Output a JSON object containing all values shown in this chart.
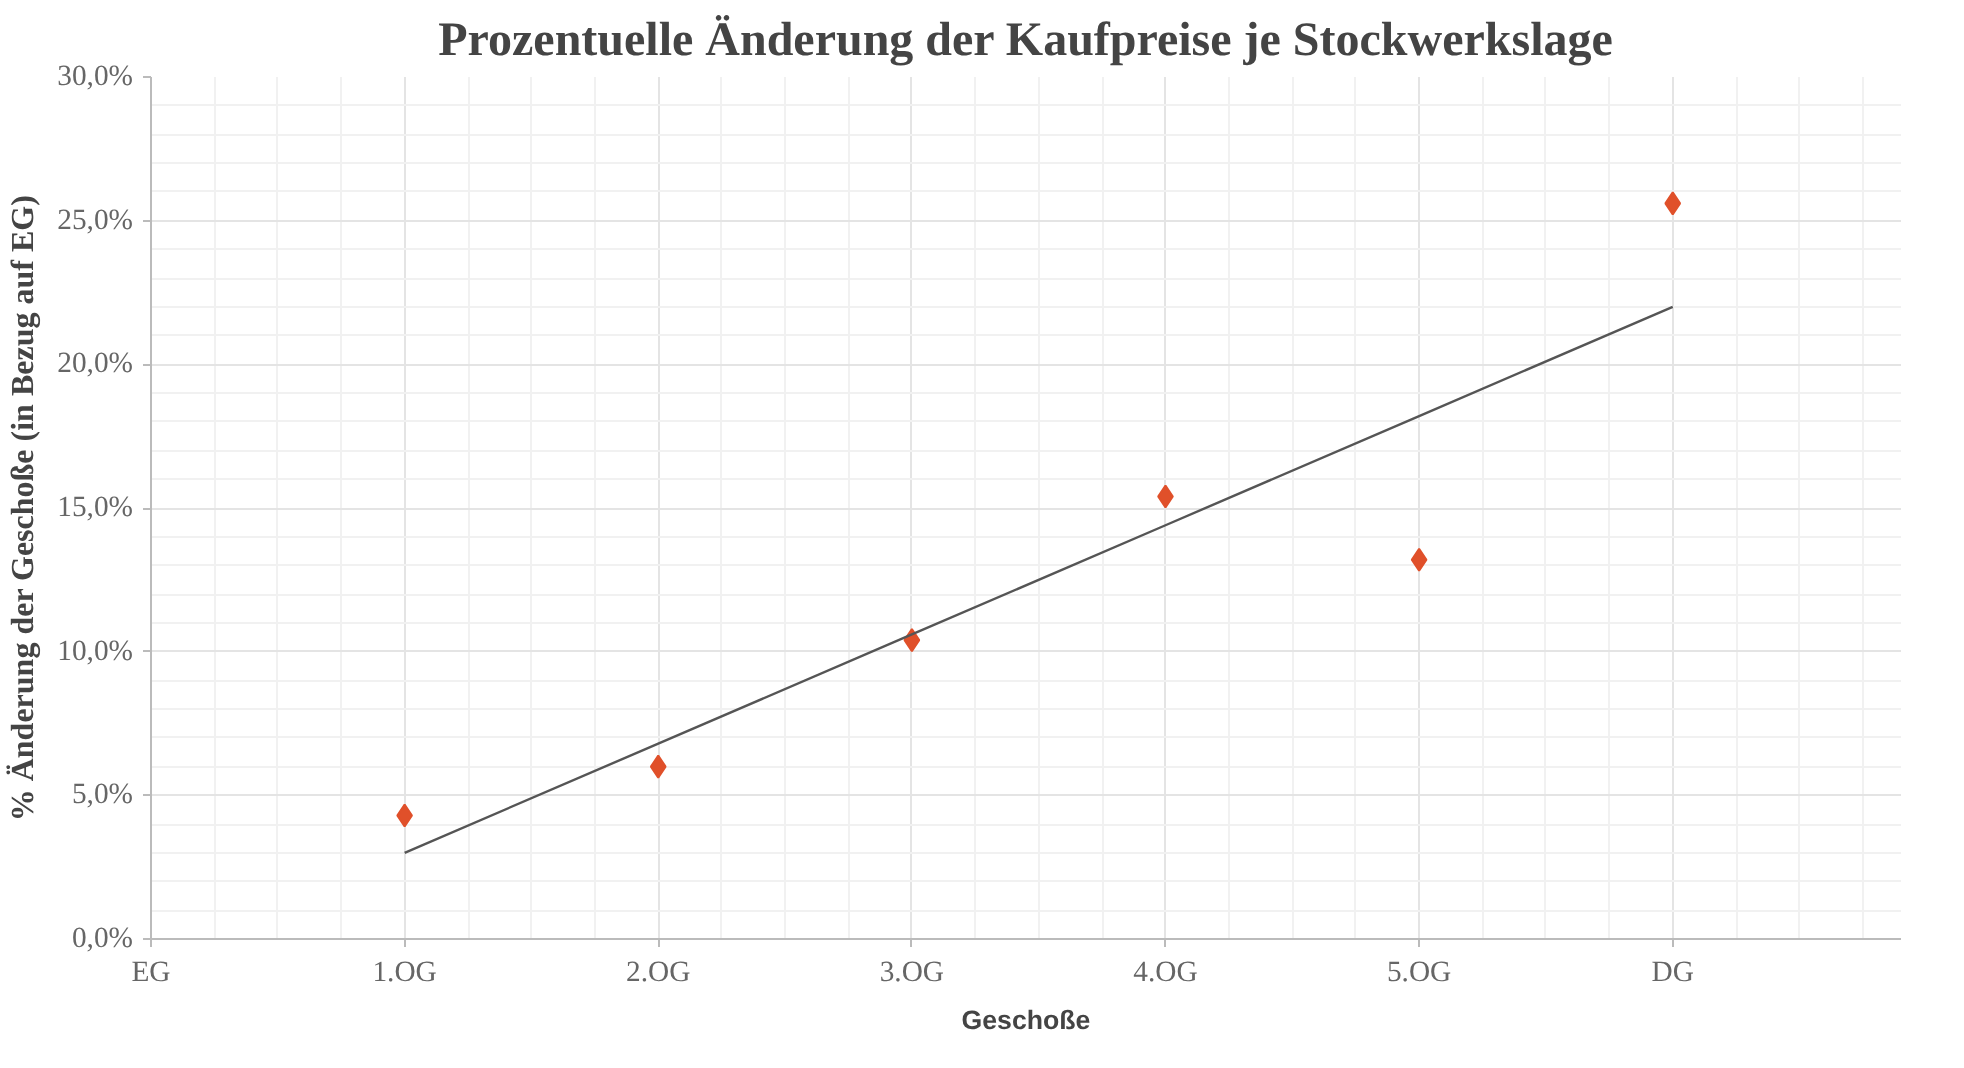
{
  "chart_data": {
    "type": "scatter",
    "title": "Prozentuelle Änderung der Kaufpreise je Stockwerkslage",
    "xlabel": "Geschoße",
    "ylabel": "% Änderung der Geschoße (in Bezug auf EG)",
    "categories": [
      "EG",
      "1.OG",
      "2.OG",
      "3.OG",
      "4.OG",
      "5.OG",
      "DG"
    ],
    "series": [
      {
        "type": "scatter",
        "color": "#e0502a",
        "marker": "diamond",
        "values": [
          null,
          4.3,
          6.0,
          10.4,
          15.4,
          13.2,
          25.6
        ]
      },
      {
        "type": "line",
        "color": "#555555",
        "marker": "none",
        "line_style": "solid",
        "values": [
          null,
          3.0,
          6.8,
          10.6,
          14.4,
          18.2,
          22.0
        ]
      }
    ],
    "ylim": [
      0,
      30
    ],
    "yticks": [
      {
        "value": 0,
        "label": "0,0%"
      },
      {
        "value": 5,
        "label": "5,0%"
      },
      {
        "value": 10,
        "label": "10,0%"
      },
      {
        "value": 15,
        "label": "15,0%"
      },
      {
        "value": 20,
        "label": "20,0%"
      },
      {
        "value": 25,
        "label": "25,0%"
      },
      {
        "value": 30,
        "label": "30,0%"
      }
    ],
    "grid": true
  }
}
